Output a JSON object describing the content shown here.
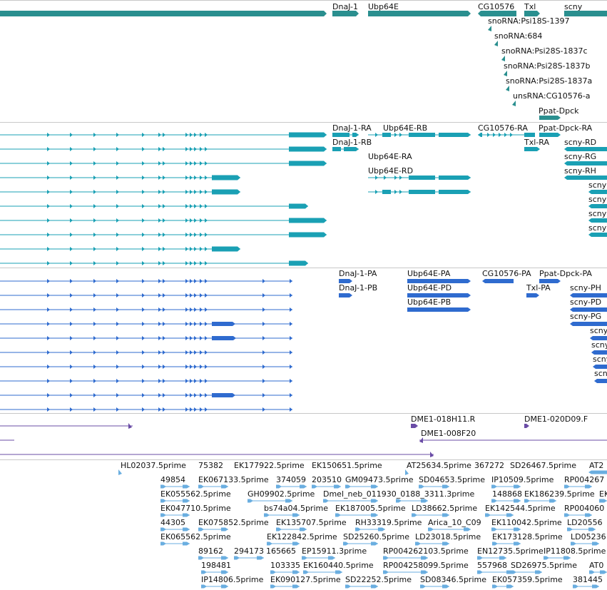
{
  "colors": {
    "genes": "#2a8f8f",
    "transcripts": "#1aa0b4",
    "cds": "#2f6bcf",
    "clones": "#6a4ca6",
    "ests": "#6aaee0"
  },
  "tracks": [
    {
      "name": "genes",
      "labels": [
        {
          "text": "DnaJ-1"
        },
        {
          "text": "Ubp64E"
        },
        {
          "text": "CG10576"
        },
        {
          "text": "Txl"
        },
        {
          "text": "scny"
        },
        {
          "text": "snoRNA:Psi18S-1397"
        },
        {
          "text": "snoRNA:684"
        },
        {
          "text": "snoRNA:Psi28S-1837c"
        },
        {
          "text": "snoRNA:Psi28S-1837b"
        },
        {
          "text": "snoRNA:Psi28S-1837a"
        },
        {
          "text": "unsRNA:CG10576-a"
        },
        {
          "text": "Ppat-Dpck"
        }
      ]
    },
    {
      "name": "transcripts",
      "labels": [
        {
          "text": "DnaJ-1-RA"
        },
        {
          "text": "Ubp64E-RB"
        },
        {
          "text": "CG10576-RA"
        },
        {
          "text": "Ppat-Dpck-RA"
        },
        {
          "text": "DnaJ-1-RB"
        },
        {
          "text": "Txl-RA"
        },
        {
          "text": "scny-RD"
        },
        {
          "text": "Ubp64E-RA"
        },
        {
          "text": "scny-RG"
        },
        {
          "text": "Ubp64E-RD"
        },
        {
          "text": "scny-RH"
        },
        {
          "text": "scny"
        },
        {
          "text": "scny"
        },
        {
          "text": "scny"
        },
        {
          "text": "scny"
        }
      ]
    },
    {
      "name": "cds",
      "labels": [
        {
          "text": "DnaJ-1-PA"
        },
        {
          "text": "Ubp64E-PA"
        },
        {
          "text": "CG10576-PA"
        },
        {
          "text": "Ppat-Dpck-PA"
        },
        {
          "text": "DnaJ-1-PB"
        },
        {
          "text": "Ubp64E-PD"
        },
        {
          "text": "Txl-PA"
        },
        {
          "text": "scny-PH"
        },
        {
          "text": "Ubp64E-PB"
        },
        {
          "text": "scny-PD"
        },
        {
          "text": "scny-PG"
        },
        {
          "text": "scny"
        },
        {
          "text": "scny"
        },
        {
          "text": "scny"
        },
        {
          "text": "scny"
        }
      ]
    },
    {
      "name": "clones",
      "labels": [
        {
          "text": "DME1-018H11.R"
        },
        {
          "text": "DME1-020D09.F"
        },
        {
          "text": "DME1-008F20"
        }
      ]
    },
    {
      "name": "ests",
      "labels": [
        {
          "text": "HL02037.5prime"
        },
        {
          "text": "75382"
        },
        {
          "text": "EK177922.5prime"
        },
        {
          "text": "EK150651.5prime"
        },
        {
          "text": "AT25634.5prime"
        },
        {
          "text": "367272"
        },
        {
          "text": "SD26467.5prime"
        },
        {
          "text": "AT2"
        },
        {
          "text": "49854"
        },
        {
          "text": "EK067133.5prime"
        },
        {
          "text": "374059"
        },
        {
          "text": "203510"
        },
        {
          "text": "GM09473.5prime"
        },
        {
          "text": "SD04653.5prime"
        },
        {
          "text": "IP10509.5prime"
        },
        {
          "text": "RP004267"
        },
        {
          "text": "EK055562.5prime"
        },
        {
          "text": "GH09902.5prime"
        },
        {
          "text": "Dmel_neb_011930_0188_3311.3prime"
        },
        {
          "text": "148868"
        },
        {
          "text": "EK186239.5prime"
        },
        {
          "text": "EK"
        },
        {
          "text": "EK047710.5prime"
        },
        {
          "text": "bs74a04.5prime"
        },
        {
          "text": "EK187005.5prime"
        },
        {
          "text": "LD38662.5prime"
        },
        {
          "text": "EK142544.5prime"
        },
        {
          "text": "RP004060"
        },
        {
          "text": "44305"
        },
        {
          "text": "EK075852.5prime"
        },
        {
          "text": "EK135707.5prime"
        },
        {
          "text": "RH33319.5prime"
        },
        {
          "text": "Arica_10_C09"
        },
        {
          "text": "EK110042.5prime"
        },
        {
          "text": "LD20556"
        },
        {
          "text": "EK065562.5prime"
        },
        {
          "text": "EK122842.5prime"
        },
        {
          "text": "SD25260.5prime"
        },
        {
          "text": "LD23018.5prime"
        },
        {
          "text": "EK173128.5prime"
        },
        {
          "text": "LD05236"
        },
        {
          "text": "89162"
        },
        {
          "text": "294173"
        },
        {
          "text": "165665"
        },
        {
          "text": "EP15911.3prime"
        },
        {
          "text": "RP004262103.5prime"
        },
        {
          "text": "EN12735.5prime"
        },
        {
          "text": "IP11808.5prime"
        },
        {
          "text": "198481"
        },
        {
          "text": "103335"
        },
        {
          "text": "EK160440.5prime"
        },
        {
          "text": "RP004258099.5prime"
        },
        {
          "text": "557968"
        },
        {
          "text": "SD26975.5prime"
        },
        {
          "text": "AT0"
        },
        {
          "text": "IP14806.5prime"
        },
        {
          "text": "EK090127.5prime"
        },
        {
          "text": "SD22252.5prime"
        },
        {
          "text": "SD08346.5prime"
        },
        {
          "text": "EK057359.5prime"
        },
        {
          "text": "381445"
        }
      ]
    }
  ]
}
